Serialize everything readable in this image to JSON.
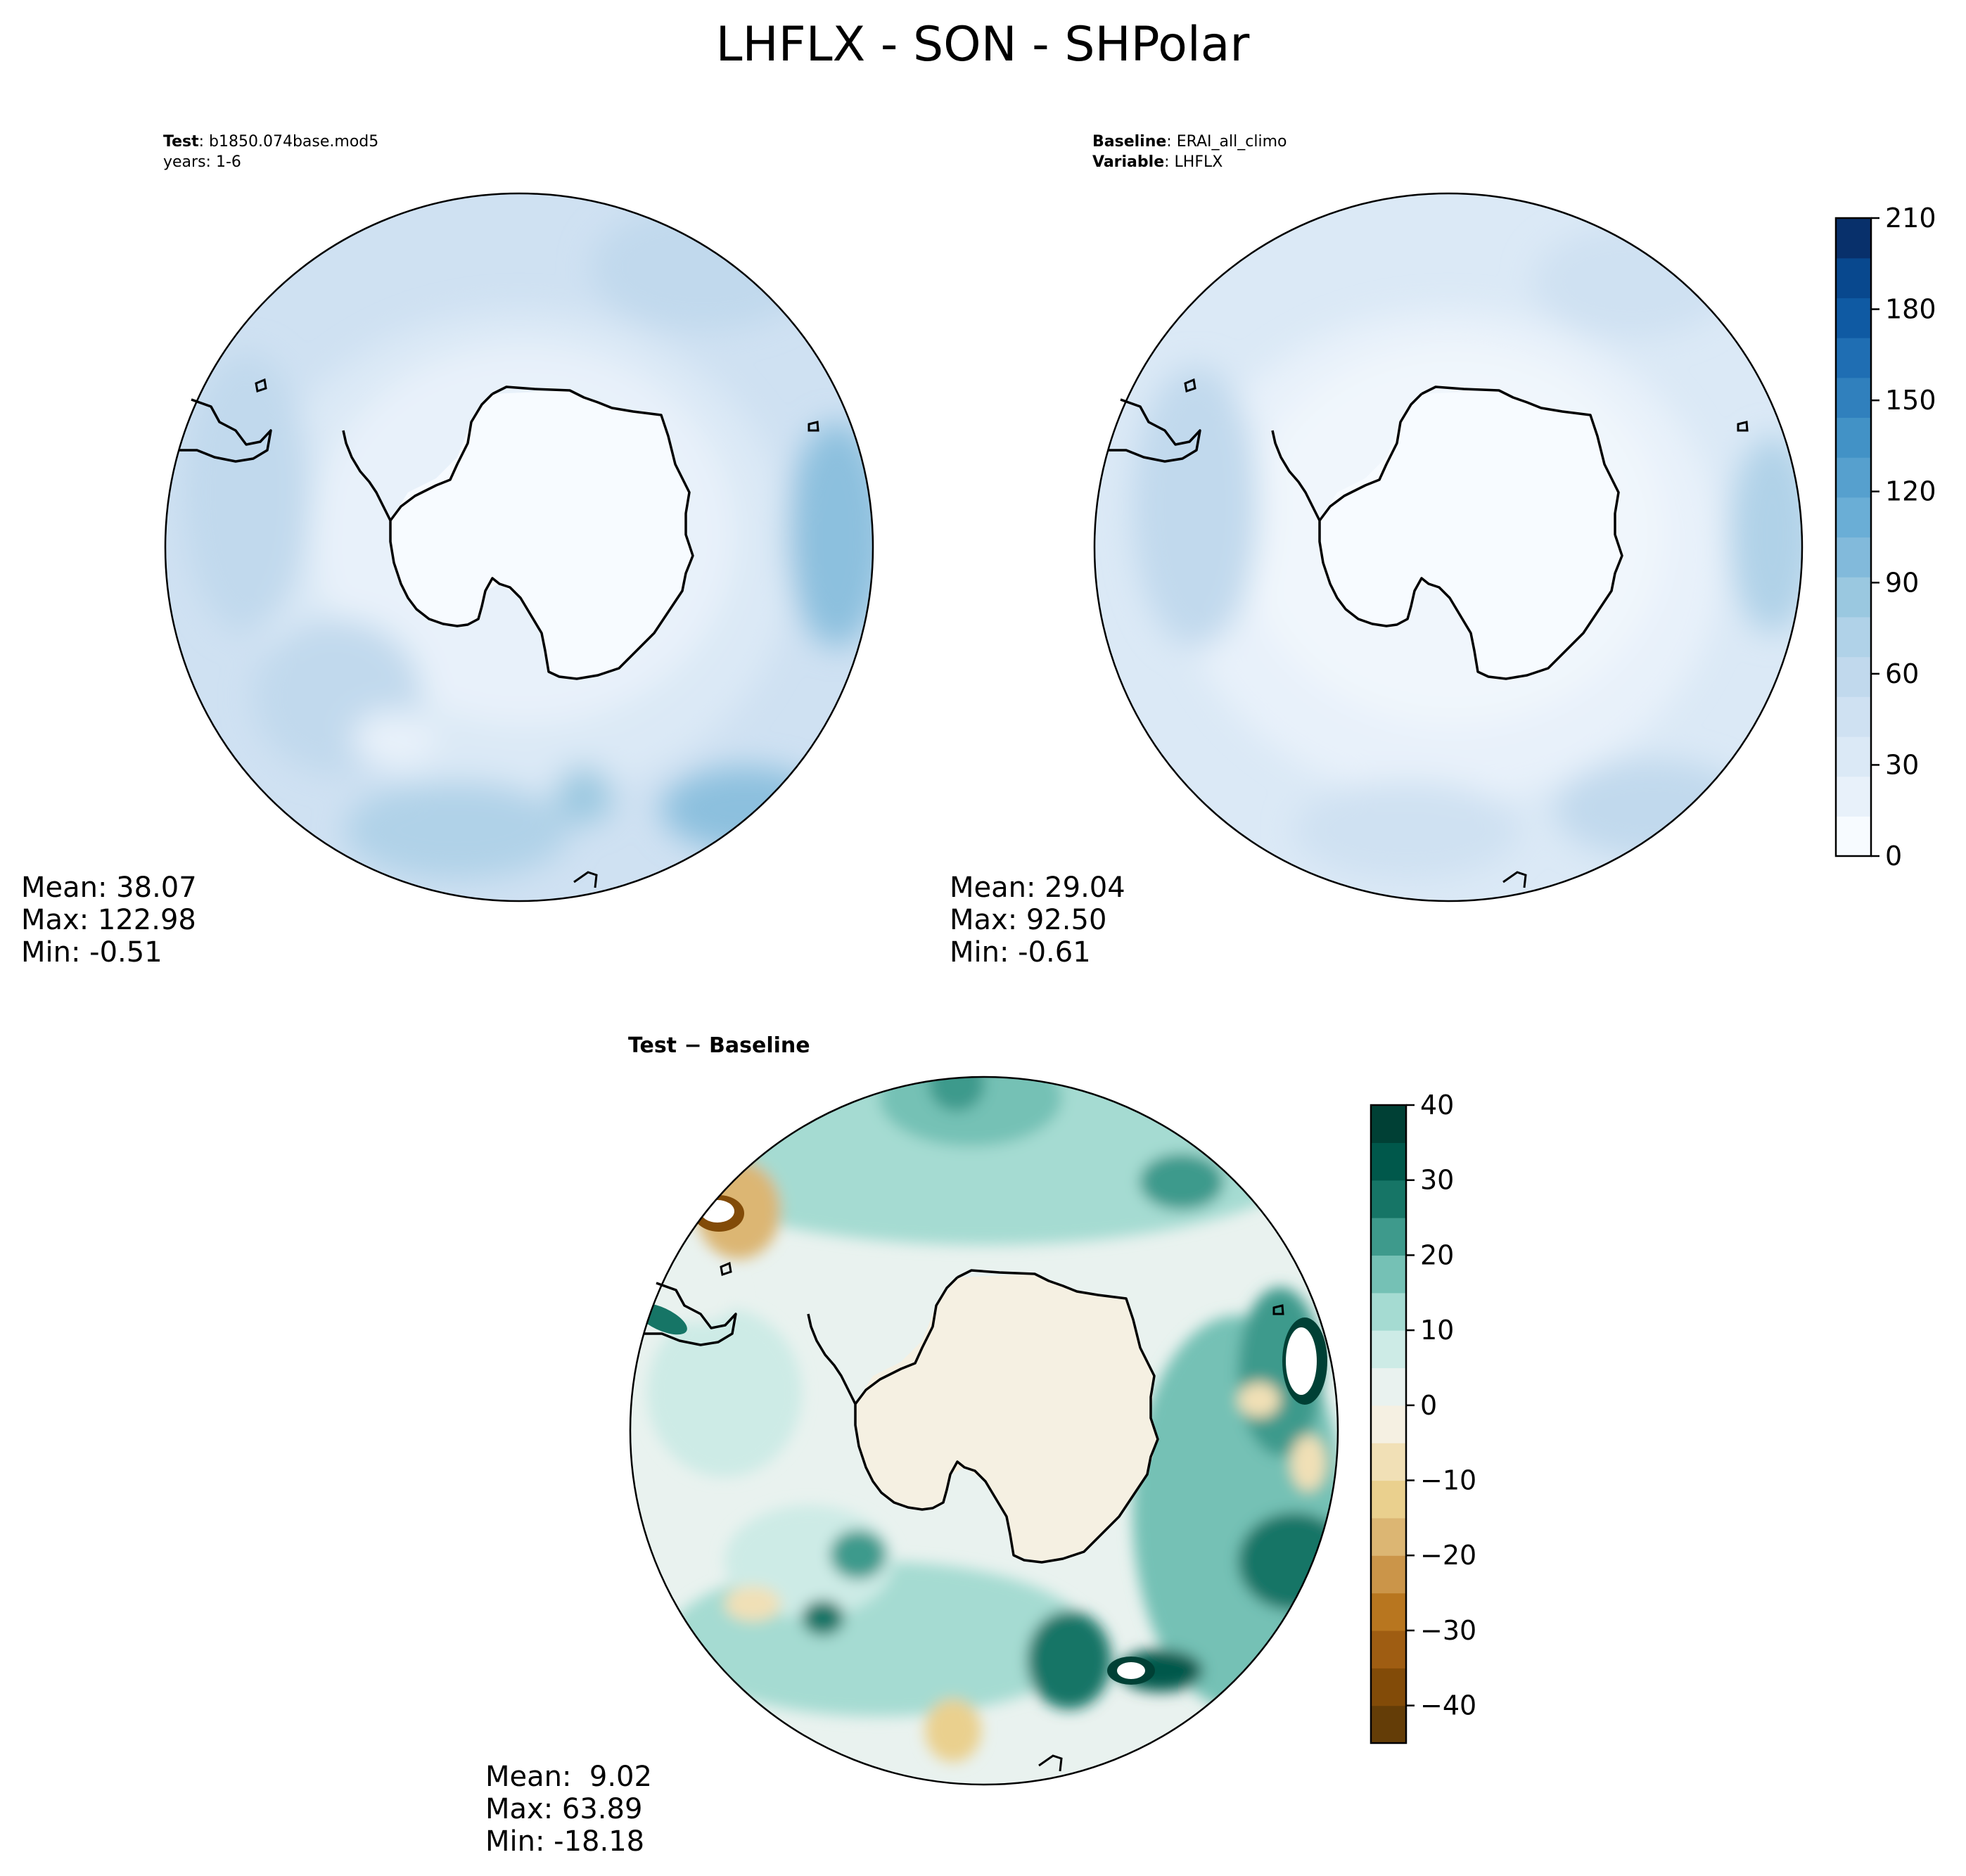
{
  "figure": {
    "title": "LHFLX - SON - SHPolar"
  },
  "panels": {
    "test": {
      "label_bold": "Test",
      "label_value": "b1850.074base.mod5",
      "line2": "years: 1-6",
      "mean": "Mean: 38.07",
      "max": "Max: 122.98",
      "min": "Min: -0.51"
    },
    "baseline": {
      "label_bold": "Baseline",
      "label_value": "ERAI_all_climo",
      "var_bold": "Variable",
      "var_value": "LHFLX",
      "mean": "Mean: 29.04",
      "max": "Max: 92.50",
      "min": "Min: -0.61"
    },
    "diff": {
      "label": "Test − Baseline",
      "mean": "Mean:  9.02",
      "max": "Max: 63.89",
      "min": "Min: -18.18"
    }
  },
  "colorbars": {
    "absolute": {
      "ticks": [
        0,
        30,
        60,
        90,
        120,
        150,
        180,
        210
      ],
      "tick_labels": [
        "0",
        "30",
        "60",
        "90",
        "120",
        "150",
        "180",
        "210"
      ],
      "range": [
        0,
        210
      ],
      "colors": [
        "#f7fbff",
        "#e8f1fa",
        "#dbe9f6",
        "#cfe1f2",
        "#c1d9ed",
        "#b0d2e8",
        "#9ac8e0",
        "#82badb",
        "#6aaed6",
        "#56a0ce",
        "#4292c6",
        "#3080bd",
        "#1f6eb3",
        "#0f5aa3",
        "#08488e",
        "#08306b"
      ]
    },
    "difference": {
      "ticks": [
        -40,
        -30,
        -20,
        -10,
        0,
        10,
        20,
        30,
        40
      ],
      "tick_labels": [
        "−40",
        "−30",
        "−20",
        "−10",
        "0",
        "10",
        "20",
        "30",
        "40"
      ],
      "range": [
        -45,
        40
      ],
      "colors": [
        "#643d07",
        "#824b08",
        "#9f5d12",
        "#b8761f",
        "#cb9549",
        "#dcb673",
        "#ead08e",
        "#f1e0b6",
        "#f5f0e2",
        "#e9f2ef",
        "#cdebe6",
        "#a5dbd2",
        "#75c1b5",
        "#3e9a8c",
        "#167566",
        "#00584b",
        "#004035"
      ]
    }
  }
}
